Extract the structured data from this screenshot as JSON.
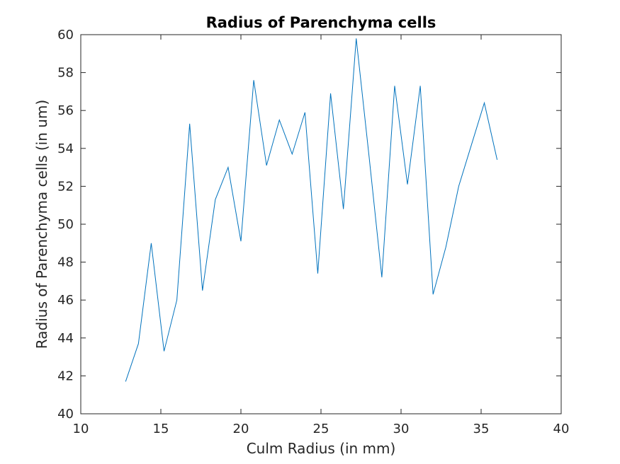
{
  "chart_data": {
    "type": "line",
    "title": "Radius of Parenchyma cells",
    "xlabel": "Culm Radius (in mm)",
    "ylabel": "Radius of Parenchyma cells (in um)",
    "xlim": [
      10,
      40
    ],
    "ylim": [
      40,
      60
    ],
    "xticks": [
      10,
      15,
      20,
      25,
      30,
      35,
      40
    ],
    "yticks": [
      40,
      42,
      44,
      46,
      48,
      50,
      52,
      54,
      56,
      58,
      60
    ],
    "grid": false,
    "line_color": "#0072BD",
    "series": [
      {
        "x": [
          12.8,
          13.6,
          14.4,
          15.2,
          16.0,
          16.8,
          17.6,
          18.4,
          19.2,
          20.0,
          20.8,
          21.6,
          22.4,
          23.2,
          24.0,
          24.8,
          25.6,
          26.4,
          27.2,
          28.0,
          28.8,
          29.6,
          30.4,
          31.2,
          32.0,
          32.8,
          33.6,
          34.4,
          35.2,
          36.0
        ],
        "y": [
          41.7,
          43.7,
          49.0,
          43.3,
          46.0,
          55.3,
          46.5,
          51.3,
          53.0,
          49.1,
          57.6,
          53.1,
          55.5,
          53.7,
          55.9,
          47.4,
          56.9,
          50.8,
          59.8,
          53.6,
          47.2,
          57.3,
          52.1,
          57.3,
          46.3,
          48.8,
          52.0,
          54.2,
          56.4,
          53.4
        ]
      }
    ]
  }
}
